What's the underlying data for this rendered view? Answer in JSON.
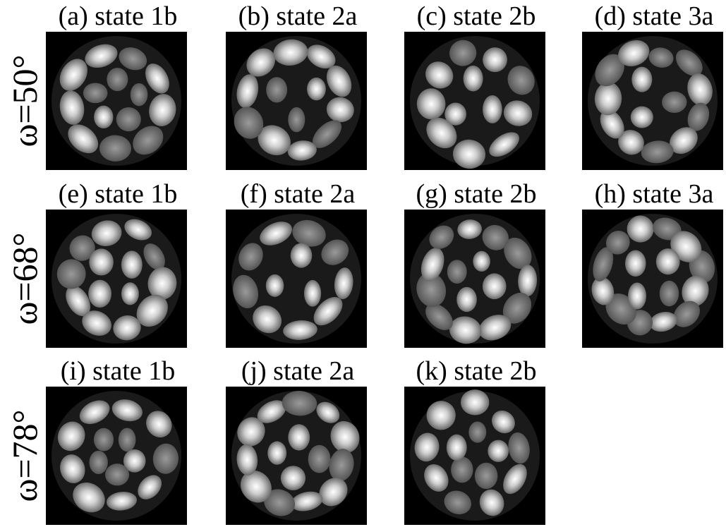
{
  "rows": [
    {
      "label": "ω=50°",
      "panels": [
        "(a) state 1b",
        "(b) state 2a",
        "(c) state 2b",
        "(d) state 3a"
      ]
    },
    {
      "label": "ω=68°",
      "panels": [
        "(e) state 1b",
        "(f) state 2a",
        "(g) state 2b",
        "(h) state 3a"
      ]
    },
    {
      "label": "ω=78°",
      "panels": [
        "(i) state 1b",
        "(j) state 2a",
        "(k) state 2b"
      ]
    }
  ]
}
